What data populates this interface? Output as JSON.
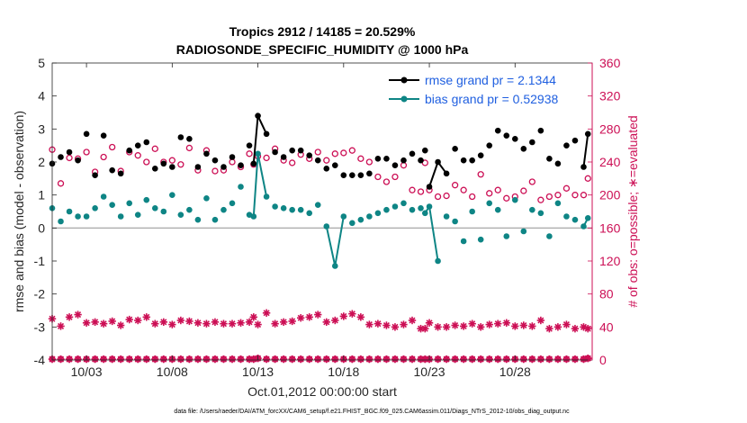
{
  "chart_data": {
    "type": "line",
    "title_line1": "Tropics 2912 / 14185 = 20.529%",
    "title_line2": "RADIOSONDE_SPECIFIC_HUMIDITY @ 1000 hPa",
    "ylabel_left": "rmse and bias (model - observation)",
    "ylabel_right": "# of obs: o=possible; ∗=evaluated",
    "xlabel": "Oct.01,2012 00:00:00 start",
    "footer": "data file: /Users/raeder/DAI/ATM_forcXX/CAM6_setup/f.e21.FHIST_BGC.f09_025.CAM6assim.011/Diags_NTrS_2012-10/obs_diag_output.nc",
    "xlim": [
      1,
      32.5
    ],
    "ylim_left": [
      -4,
      5
    ],
    "ylim_right": [
      0,
      360
    ],
    "left_ticks": [
      "-4",
      "-3",
      "-2",
      "-1",
      "0",
      "1",
      "2",
      "3",
      "4",
      "5"
    ],
    "right_ticks": [
      "0",
      "40",
      "80",
      "120",
      "160",
      "200",
      "240",
      "280",
      "320",
      "360"
    ],
    "x_ticks": [
      {
        "day": 3,
        "label": "10/03"
      },
      {
        "day": 8,
        "label": "10/08"
      },
      {
        "day": 13,
        "label": "10/13"
      },
      {
        "day": 18,
        "label": "10/18"
      },
      {
        "day": 23,
        "label": "10/23"
      },
      {
        "day": 28,
        "label": "10/28"
      }
    ],
    "colors": {
      "rmse": "#000000",
      "bias": "#0e8585",
      "obs": "#cc0f55",
      "legend_text": "#1f5fe0",
      "zero_line": "#b0b0b0"
    },
    "series": [
      {
        "name": "rmse grand pr = 2.1344",
        "axis": "left",
        "x": [
          1,
          1.5,
          2,
          2.5,
          3,
          3.5,
          4,
          4.5,
          5,
          5.5,
          6,
          6.5,
          7,
          7.5,
          8,
          8.5,
          9,
          9.5,
          10,
          10.5,
          11,
          11.5,
          12,
          12.5,
          12.75,
          13,
          13.5,
          14,
          14.5,
          15,
          15.5,
          16,
          16.5,
          17,
          17.5,
          18,
          18.5,
          19,
          19.5,
          20,
          20.5,
          21,
          21.5,
          22,
          22.5,
          22.75,
          23,
          23.5,
          24,
          24.5,
          25,
          25.5,
          26,
          26.5,
          27,
          27.5,
          28,
          28.5,
          29,
          29.5,
          30,
          30.5,
          31,
          31.5,
          32,
          32.25
        ],
        "values": [
          1.95,
          2.15,
          2.3,
          2.05,
          2.85,
          1.6,
          2.8,
          1.75,
          1.65,
          2.35,
          2.5,
          2.6,
          1.8,
          1.95,
          1.85,
          2.75,
          2.7,
          1.85,
          2.25,
          2.05,
          1.85,
          2.15,
          1.9,
          2.5,
          1.95,
          3.4,
          2.85,
          2.3,
          2.15,
          2.35,
          2.35,
          2.2,
          2.05,
          1.8,
          1.9,
          1.6,
          1.6,
          1.6,
          1.65,
          2.1,
          2.1,
          1.9,
          2.05,
          2.25,
          2.05,
          2.35,
          1.25,
          2.0,
          1.65,
          2.4,
          2.05,
          2.05,
          2.2,
          2.5,
          2.95,
          2.8,
          2.7,
          2.4,
          2.6,
          2.95,
          2.1,
          1.95,
          2.5,
          2.65,
          1.85,
          2.85
        ],
        "connected": [
          [
            12.75,
            13,
            13.5
          ],
          [
            23,
            23.5,
            24
          ],
          [
            32,
            32.25
          ]
        ]
      },
      {
        "name": "bias grand pr = 0.52938",
        "axis": "left",
        "x": [
          1,
          1.5,
          2,
          2.5,
          3,
          3.5,
          4,
          4.5,
          5,
          5.5,
          6,
          6.5,
          7,
          7.5,
          8,
          8.5,
          9,
          9.5,
          10,
          10.5,
          11,
          11.5,
          12,
          12.5,
          12.75,
          13,
          13.5,
          14,
          14.5,
          15,
          15.5,
          16,
          16.5,
          17,
          17.5,
          18,
          18.5,
          19,
          19.5,
          20,
          20.5,
          21,
          21.5,
          22,
          22.5,
          22.75,
          23,
          23.5,
          24,
          24.5,
          25,
          25.5,
          26,
          26.5,
          27,
          27.5,
          28,
          28.5,
          29,
          29.5,
          30,
          30.5,
          31,
          31.5,
          32,
          32.25
        ],
        "values": [
          0.6,
          0.2,
          0.5,
          0.35,
          0.35,
          0.6,
          0.95,
          0.7,
          0.35,
          0.75,
          0.4,
          0.85,
          0.6,
          0.5,
          1.0,
          0.4,
          0.55,
          0.25,
          0.9,
          0.25,
          0.55,
          0.75,
          1.25,
          0.4,
          0.35,
          2.25,
          0.95,
          0.65,
          0.6,
          0.55,
          0.55,
          0.45,
          0.7,
          0.05,
          -1.15,
          0.35,
          0.15,
          0.25,
          0.35,
          0.45,
          0.55,
          0.65,
          0.75,
          0.55,
          0.6,
          0.45,
          0.65,
          -1.0,
          0.35,
          0.2,
          -0.4,
          0.5,
          -0.35,
          0.75,
          0.55,
          -0.25,
          0.85,
          -0.1,
          0.55,
          0.45,
          -0.25,
          0.75,
          0.35,
          0.25,
          0.05,
          0.3
        ],
        "connected": [
          [
            12.75,
            13,
            13.5
          ],
          [
            17,
            17.5,
            18
          ],
          [
            22.75,
            23,
            23.5
          ],
          [
            31.75,
            32,
            32.25
          ]
        ]
      },
      {
        "name": "obs possible",
        "axis": "right",
        "x": [
          1,
          1.5,
          2,
          2.5,
          3,
          3.5,
          4,
          4.5,
          5,
          5.5,
          6,
          6.5,
          7,
          7.5,
          8,
          8.5,
          9,
          9.5,
          10,
          10.5,
          11,
          11.5,
          12,
          12.5,
          12.75,
          13,
          13.5,
          14,
          14.5,
          15,
          15.5,
          16,
          16.5,
          17,
          17.5,
          18,
          18.5,
          19,
          19.5,
          20,
          20.5,
          21,
          21.5,
          22,
          22.5,
          22.75,
          23,
          23.5,
          24,
          24.5,
          25,
          25.5,
          26,
          26.5,
          27,
          27.5,
          28,
          28.5,
          29,
          29.5,
          30,
          30.5,
          31,
          31.5,
          32,
          32.25
        ],
        "values": [
          255,
          214,
          245,
          244,
          252,
          228,
          246,
          258,
          229,
          252,
          248,
          240,
          256,
          240,
          242,
          237,
          257,
          230,
          254,
          229,
          230,
          240,
          234,
          250,
          237,
          247,
          245,
          256,
          242,
          239,
          249,
          244,
          252,
          242,
          250,
          251,
          254,
          244,
          240,
          222,
          216,
          222,
          236,
          206,
          204,
          239,
          206,
          198,
          199,
          212,
          206,
          198,
          225,
          202,
          206,
          196,
          198,
          205,
          216,
          194,
          198,
          200,
          208,
          200,
          200,
          220
        ]
      },
      {
        "name": "obs evaluated",
        "axis": "right",
        "x": [
          1,
          1.5,
          2,
          2.5,
          3,
          3.5,
          4,
          4.5,
          5,
          5.5,
          6,
          6.5,
          7,
          7.5,
          8,
          8.5,
          9,
          9.5,
          10,
          10.5,
          11,
          11.5,
          12,
          12.5,
          12.75,
          13,
          13.5,
          14,
          14.5,
          15,
          15.5,
          16,
          16.5,
          17,
          17.5,
          18,
          18.5,
          19,
          19.5,
          20,
          20.5,
          21,
          21.5,
          22,
          22.5,
          22.75,
          23,
          23.5,
          24,
          24.5,
          25,
          25.5,
          26,
          26.5,
          27,
          27.5,
          28,
          28.5,
          29,
          29.5,
          30,
          30.5,
          31,
          31.5,
          32,
          32.25
        ],
        "values": [
          50,
          41,
          52,
          55,
          45,
          46,
          44,
          47,
          42,
          49,
          48,
          52,
          44,
          46,
          43,
          48,
          47,
          45,
          44,
          46,
          44,
          44,
          45,
          46,
          52,
          43,
          57,
          44,
          46,
          47,
          51,
          52,
          55,
          46,
          48,
          53,
          56,
          52,
          43,
          44,
          42,
          40,
          43,
          48,
          38,
          38,
          45,
          40,
          40,
          42,
          41,
          44,
          40,
          43,
          44,
          45,
          41,
          42,
          41,
          48,
          38,
          40,
          43,
          38,
          40,
          38
        ]
      },
      {
        "name": "obs baseline",
        "axis": "right",
        "x": [
          1,
          1.5,
          2,
          2.5,
          3,
          3.5,
          4,
          4.5,
          5,
          5.5,
          6,
          6.5,
          7,
          7.5,
          8,
          8.5,
          9,
          9.5,
          10,
          10.5,
          11,
          11.5,
          12,
          12.5,
          12.75,
          13,
          13.5,
          14,
          14.5,
          15,
          15.5,
          16,
          16.5,
          17,
          17.5,
          18,
          18.5,
          19,
          19.5,
          20,
          20.5,
          21,
          21.5,
          22,
          22.5,
          22.75,
          23,
          23.5,
          24,
          24.5,
          25,
          25.5,
          26,
          26.5,
          27,
          27.5,
          28,
          28.5,
          29,
          29.5,
          30,
          30.5,
          31,
          31.5,
          32,
          32.25
        ],
        "values": [
          1,
          1,
          1,
          1,
          1,
          1,
          1,
          1,
          1,
          1,
          1,
          1,
          1,
          1,
          1,
          1,
          1,
          1,
          1,
          1,
          1,
          1,
          1,
          1,
          1,
          2,
          1,
          1,
          1,
          1,
          1,
          1,
          1,
          1,
          1,
          1,
          1,
          1,
          1,
          1,
          1,
          1,
          1,
          1,
          1,
          1,
          1,
          1,
          1,
          1,
          1,
          1,
          1,
          1,
          1,
          1,
          1,
          1,
          1,
          1,
          1,
          1,
          1,
          1,
          1,
          2
        ]
      }
    ]
  }
}
